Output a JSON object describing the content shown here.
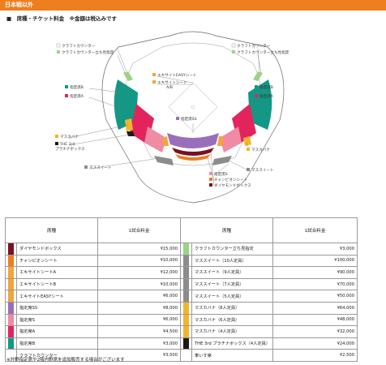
{
  "banner": "日本戦以外",
  "heading": "■　席種・チケット料金　※金額は税込みです",
  "map_labels": {
    "craft_counter": "クラフトカウンター",
    "craft_counter_standing": "クラフトカウンター立ち見指定",
    "shitei_b": "指定席B",
    "shitei_a": "指定席A",
    "excite_easy": "エキサイトEASYシート",
    "excite_ab": "エキサイトシート\nA/B",
    "shitei_ss": "指定席SS",
    "shitei_s": "指定席S",
    "masukabana": "マスカバナ",
    "the3rd": "THE 3rd\nプラチナボックス",
    "masu_suite": "マススイート",
    "champion": "チャンピオンシート",
    "diamond": "ダイヤモンドボックス"
  },
  "table": {
    "headers": [
      "席種",
      "1試合料金",
      "席種",
      "1試合料金"
    ],
    "left": [
      {
        "name": "ダイヤモンドボックス",
        "price": "¥15,000",
        "color": "#7a1020"
      },
      {
        "name": "チャンピオンシート",
        "price": "¥10,000",
        "color": "#f07c22"
      },
      {
        "name": "エキサイトシートA",
        "price": "¥12,000",
        "color": "#f3a43c"
      },
      {
        "name": "エキサイトシートB",
        "price": "¥10,000",
        "color": "#f3a43c"
      },
      {
        "name": "エキサイトEASYシート",
        "price": "¥6,000",
        "color": "#f3a43c"
      },
      {
        "name": "指定席SS",
        "price": "¥8,000",
        "color": "#9a6fba"
      },
      {
        "name": "指定席S",
        "price": "¥6,000",
        "color": "#f08aa5"
      },
      {
        "name": "指定席A",
        "price": "¥4,500",
        "color": "#e3245c"
      },
      {
        "name": "指定席B",
        "price": "¥3,000",
        "color": "#149784"
      },
      {
        "name": "クラフトカウンター",
        "price": "¥3,500",
        "color": "#ffffff"
      }
    ],
    "right": [
      {
        "name": "クラフトカウンター立ち見指定",
        "price": "¥3,000",
        "color": "#9bd387"
      },
      {
        "name": "マススイート（10人定員）",
        "price": "¥100,000",
        "color": "#8c8c8c"
      },
      {
        "name": "マススイート（9人定員）",
        "price": "¥90,000",
        "color": "#8c8c8c"
      },
      {
        "name": "マススイート（7人定員）",
        "price": "¥70,000",
        "color": "#8c8c8c"
      },
      {
        "name": "マススイート（5人定員）",
        "price": "¥50,000",
        "color": "#8c8c8c"
      },
      {
        "name": "マスカバナ（8人定員）",
        "price": "¥64,000",
        "color": "#f2b52a"
      },
      {
        "name": "マスカバナ（6人定員）",
        "price": "¥48,000",
        "color": "#f2b52a"
      },
      {
        "name": "マスカバナ（4人定員）",
        "price": "¥32,000",
        "color": "#f2b52a"
      },
      {
        "name": "THE 3rd プラチナボックス（4人定員）",
        "price": "¥24,000",
        "color": "#1e1a14"
      },
      {
        "name": "車いす席",
        "price": "¥2,500",
        "color": "#ffffff"
      }
    ]
  },
  "note": "※外野指定席や2階内野席を追加販売する場合がございます"
}
